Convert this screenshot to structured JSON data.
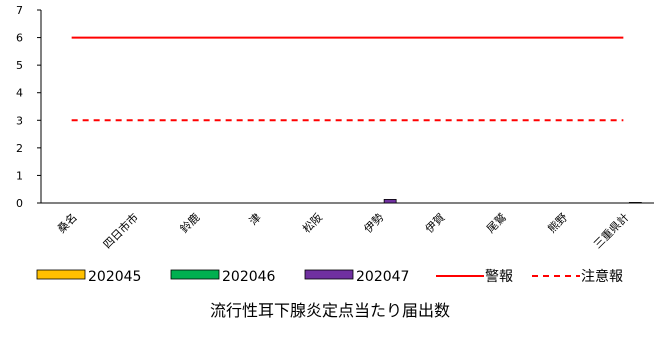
{
  "chart_data": {
    "type": "bar",
    "categories": [
      "桑名",
      "四日市市",
      "鈴鹿",
      "津",
      "松阪",
      "伊勢",
      "伊賀",
      "尾鷲",
      "熊野",
      "三重県計"
    ],
    "series": [
      {
        "name": "202045",
        "values": [
          0,
          0,
          0,
          0,
          0,
          0,
          0,
          0,
          0,
          0
        ],
        "color": "#ffc000"
      },
      {
        "name": "202046",
        "values": [
          0,
          0,
          0,
          0,
          0,
          0,
          0,
          0,
          0,
          0
        ],
        "color": "#00b050"
      },
      {
        "name": "202047",
        "values": [
          0,
          0,
          0,
          0,
          0,
          0.13,
          0,
          0,
          0,
          0.02
        ],
        "color": "#7030a0"
      }
    ],
    "lines": [
      {
        "name": "警報",
        "value": 6,
        "style": "solid",
        "color": "#ff0000"
      },
      {
        "name": "注意報",
        "value": 3,
        "style": "dashed",
        "color": "#ff0000"
      }
    ],
    "ylim": [
      0,
      7
    ],
    "yticks": [
      "0",
      "1",
      "2",
      "3",
      "4",
      "5",
      "6",
      "7"
    ],
    "xlabel": "流行性耳下腺炎定点当たり届出数",
    "legend_position": "bottom",
    "grid": false
  }
}
